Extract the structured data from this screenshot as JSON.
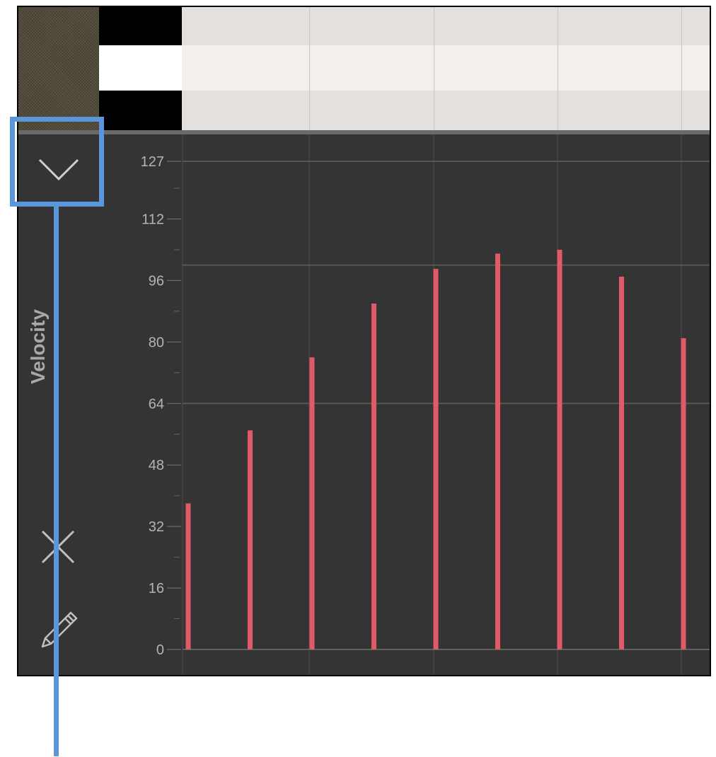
{
  "panel": {
    "label": "Velocity",
    "icons": {
      "collapse": "chevron-down-icon",
      "close": "close-icon",
      "edit": "pencil-icon"
    }
  },
  "piano_roll": {
    "keys": [
      "black",
      "white",
      "black"
    ]
  },
  "colors": {
    "bar": "#e05a67",
    "panel_bg": "#343434",
    "highlight": "#5b96db"
  },
  "chart_data": {
    "type": "bar",
    "ylabel": "Velocity",
    "ylim": [
      0,
      127
    ],
    "yticks": [
      0,
      16,
      32,
      48,
      64,
      80,
      96,
      112,
      127
    ],
    "values": [
      38,
      57,
      76,
      90,
      99,
      103,
      104,
      97,
      81
    ]
  }
}
